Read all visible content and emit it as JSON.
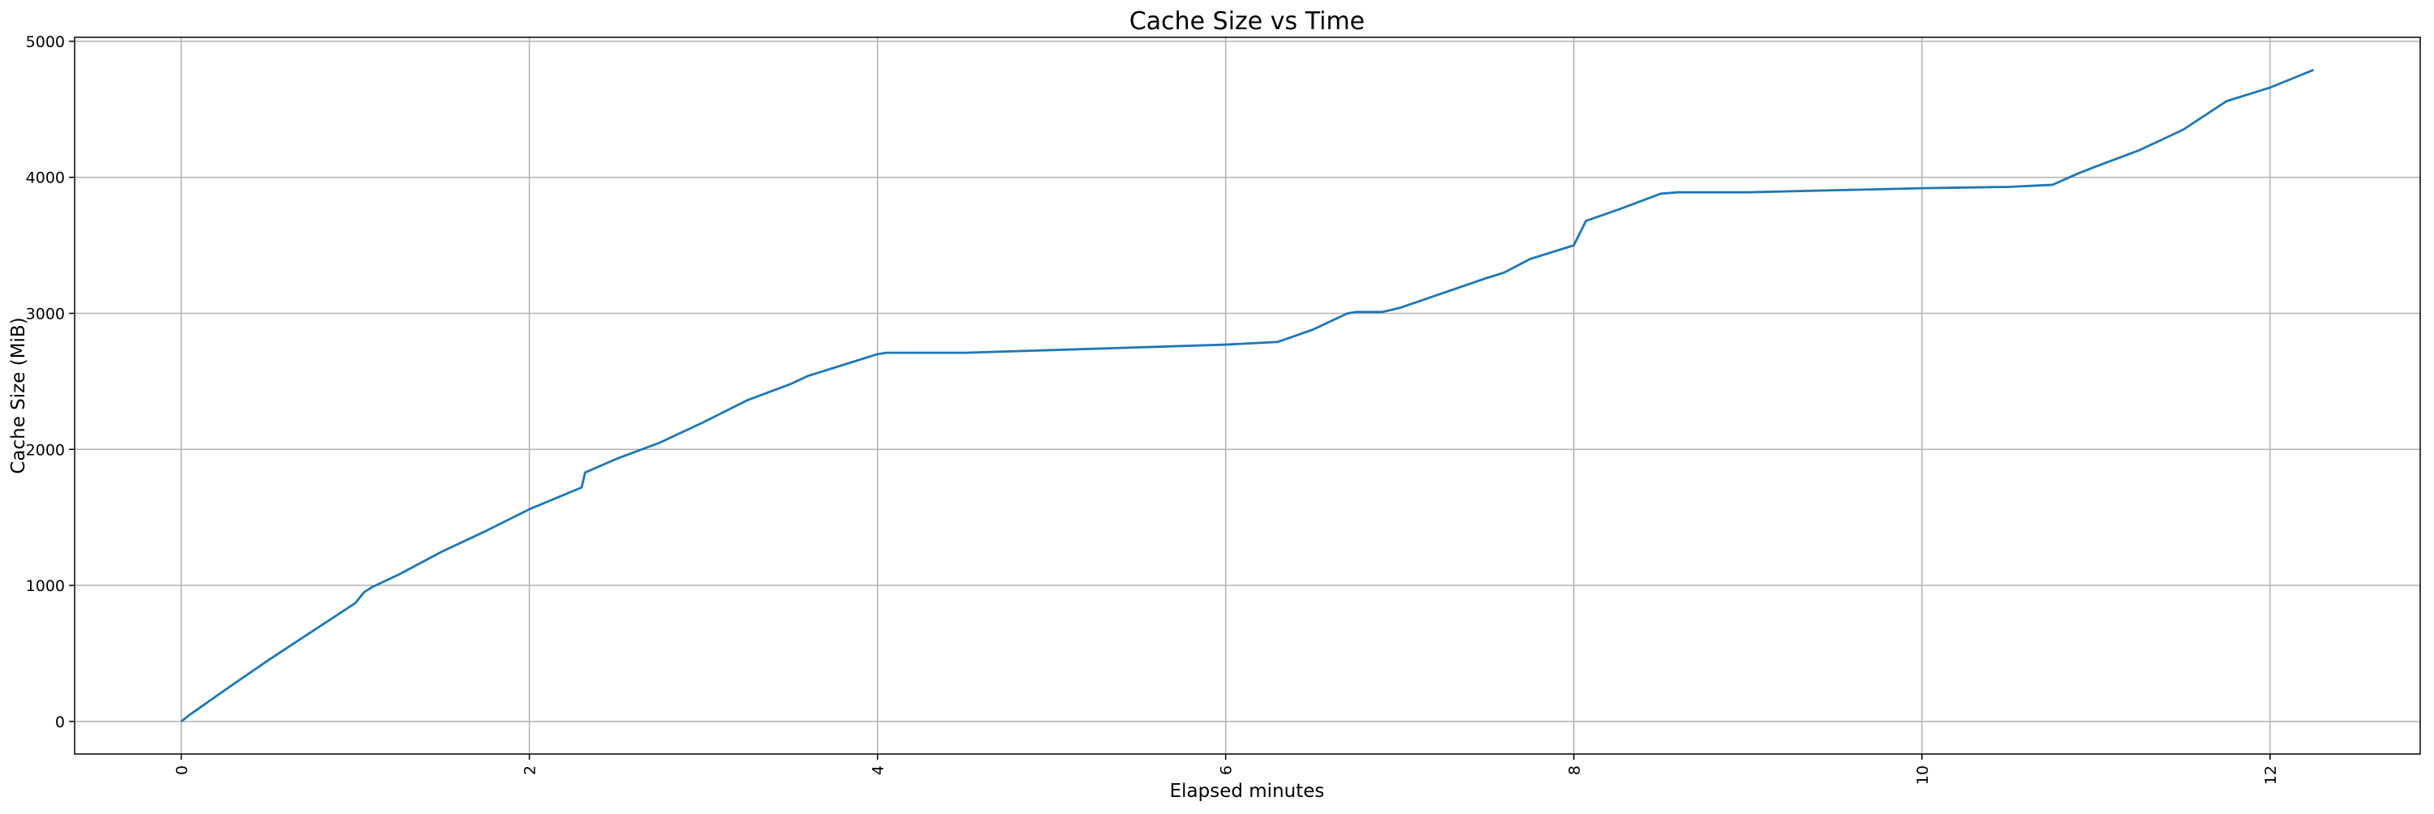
{
  "chart_data": {
    "type": "line",
    "title": "Cache Size vs Time",
    "xlabel": "Elapsed minutes",
    "ylabel": "Cache Size (MiB)",
    "x": [
      0,
      0.05,
      0.25,
      0.5,
      0.75,
      1.0,
      1.05,
      1.1,
      1.25,
      1.5,
      1.75,
      2.0,
      2.3,
      2.32,
      2.5,
      2.75,
      3.0,
      3.25,
      3.5,
      3.6,
      3.75,
      4.0,
      4.05,
      4.5,
      5.0,
      5.5,
      6.0,
      6.3,
      6.5,
      6.7,
      6.75,
      6.9,
      7.0,
      7.25,
      7.5,
      7.6,
      7.75,
      8.0,
      8.07,
      8.25,
      8.5,
      8.6,
      9.0,
      9.5,
      10.0,
      10.5,
      10.75,
      10.9,
      11.0,
      11.25,
      11.5,
      11.75,
      12.0,
      12.25
    ],
    "series": [
      {
        "color": "#1f77b4",
        "values": [
          0,
          50,
          230,
          450,
          660,
          870,
          950,
          990,
          1080,
          1250,
          1400,
          1560,
          1720,
          1830,
          1930,
          2050,
          2200,
          2360,
          2480,
          2540,
          2600,
          2700,
          2710,
          2710,
          2730,
          2750,
          2770,
          2790,
          2880,
          3000,
          3010,
          3010,
          3040,
          3150,
          3260,
          3300,
          3400,
          3500,
          3680,
          3760,
          3880,
          3890,
          3890,
          3905,
          3920,
          3930,
          3945,
          4030,
          4080,
          4200,
          4350,
          4560,
          4660,
          4790
        ]
      }
    ],
    "xlim": [
      -0.6125,
      12.8625
    ],
    "ylim": [
      -239.5,
      5029.5
    ],
    "xticks": [
      0,
      2,
      4,
      6,
      8,
      10,
      12
    ],
    "yticks": [
      0,
      1000,
      2000,
      3000,
      4000,
      5000
    ],
    "grid": true
  }
}
